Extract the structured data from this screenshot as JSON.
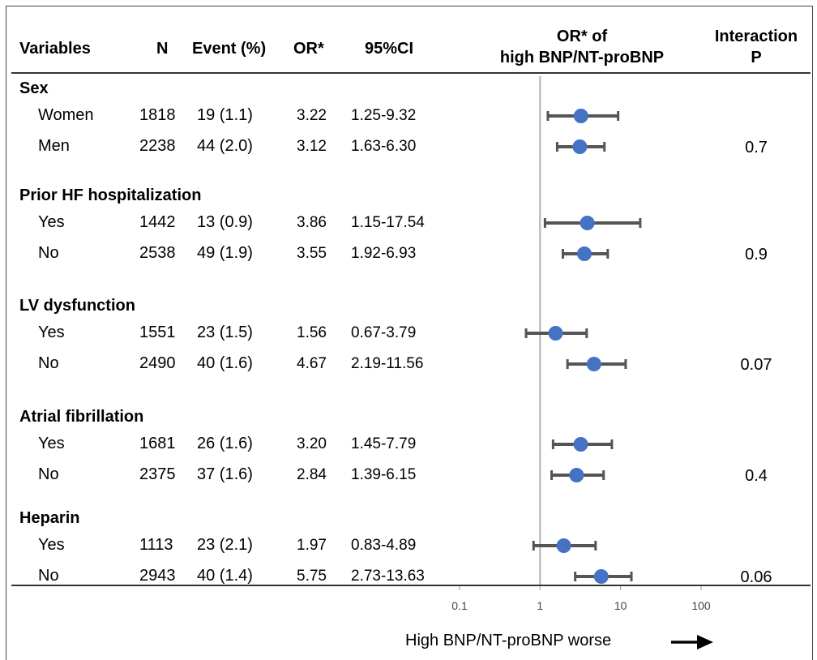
{
  "headers": {
    "variables": "Variables",
    "n": "N",
    "event": "Event (%)",
    "or": "OR*",
    "ci": "95%CI",
    "plot_line1": "OR* of",
    "plot_line2": "high BNP/NT-proBNP",
    "interaction_line1": "Interaction",
    "interaction_line2": "P"
  },
  "groups": [
    {
      "label": "Sex",
      "p": "0.7",
      "rows": [
        {
          "name": "Women",
          "n": "1818",
          "event": "19 (1.1)",
          "or_text": "3.22",
          "ci_text": "1.25-9.32"
        },
        {
          "name": "Men",
          "n": "2238",
          "event": "44 (2.0)",
          "or_text": "3.12",
          "ci_text": "1.63-6.30"
        }
      ]
    },
    {
      "label": "Prior HF hospitalization",
      "p": "0.9",
      "rows": [
        {
          "name": "Yes",
          "n": "1442",
          "event": "13 (0.9)",
          "or_text": "3.86",
          "ci_text": "1.15-17.54"
        },
        {
          "name": "No",
          "n": "2538",
          "event": "49 (1.9)",
          "or_text": "3.55",
          "ci_text": "1.92-6.93"
        }
      ]
    },
    {
      "label": "LV dysfunction",
      "p": "0.07",
      "rows": [
        {
          "name": "Yes",
          "n": "1551",
          "event": "23 (1.5)",
          "or_text": "1.56",
          "ci_text": "0.67-3.79"
        },
        {
          "name": "No",
          "n": "2490",
          "event": "40 (1.6)",
          "or_text": "4.67",
          "ci_text": "2.19-11.56"
        }
      ]
    },
    {
      "label": "Atrial fibrillation",
      "p": "0.4",
      "rows": [
        {
          "name": "Yes",
          "n": "1681",
          "event": "26 (1.6)",
          "or_text": "3.20",
          "ci_text": "1.45-7.79"
        },
        {
          "name": "No",
          "n": "2375",
          "event": "37 (1.6)",
          "or_text": "2.84",
          "ci_text": "1.39-6.15"
        }
      ]
    },
    {
      "label": "Heparin",
      "p": "0.06",
      "rows": [
        {
          "name": "Yes",
          "n": "1113",
          "event": "23 (2.1)",
          "or_text": "1.97",
          "ci_text": "0.83-4.89"
        },
        {
          "name": "No",
          "n": "2943",
          "event": "40 (1.4)",
          "or_text": "5.75",
          "ci_text": "2.73-13.63"
        }
      ]
    }
  ],
  "xlabel": "High BNP/NT-proBNP worse",
  "chart_data": {
    "type": "scatter",
    "title": "OR* of high BNP/NT-proBNP",
    "xscale": "log",
    "xlim": [
      0.1,
      100
    ],
    "xticks": [
      "0.1",
      "1",
      "10",
      "100"
    ],
    "reference_line": 1,
    "xlabel": "High BNP/NT-proBNP worse",
    "points": [
      {
        "label": "Women",
        "or": 3.22,
        "ci": [
          1.25,
          9.32
        ]
      },
      {
        "label": "Men",
        "or": 3.12,
        "ci": [
          1.63,
          6.3
        ]
      },
      {
        "label": "Yes",
        "or": 3.86,
        "ci": [
          1.15,
          17.54
        ]
      },
      {
        "label": "No",
        "or": 3.55,
        "ci": [
          1.92,
          6.93
        ]
      },
      {
        "label": "Yes",
        "or": 1.56,
        "ci": [
          0.67,
          3.79
        ]
      },
      {
        "label": "No",
        "or": 4.67,
        "ci": [
          2.19,
          11.56
        ]
      },
      {
        "label": "Yes",
        "or": 3.2,
        "ci": [
          1.45,
          7.79
        ]
      },
      {
        "label": "No",
        "or": 2.84,
        "ci": [
          1.39,
          6.15
        ]
      },
      {
        "label": "Yes",
        "or": 1.97,
        "ci": [
          0.83,
          4.89
        ]
      },
      {
        "label": "No",
        "or": 5.75,
        "ci": [
          2.73,
          13.63
        ]
      }
    ],
    "colors": {
      "marker": "#4472C4",
      "whisker": "#555555",
      "reference": "#BFBFBF"
    },
    "grid": false
  }
}
